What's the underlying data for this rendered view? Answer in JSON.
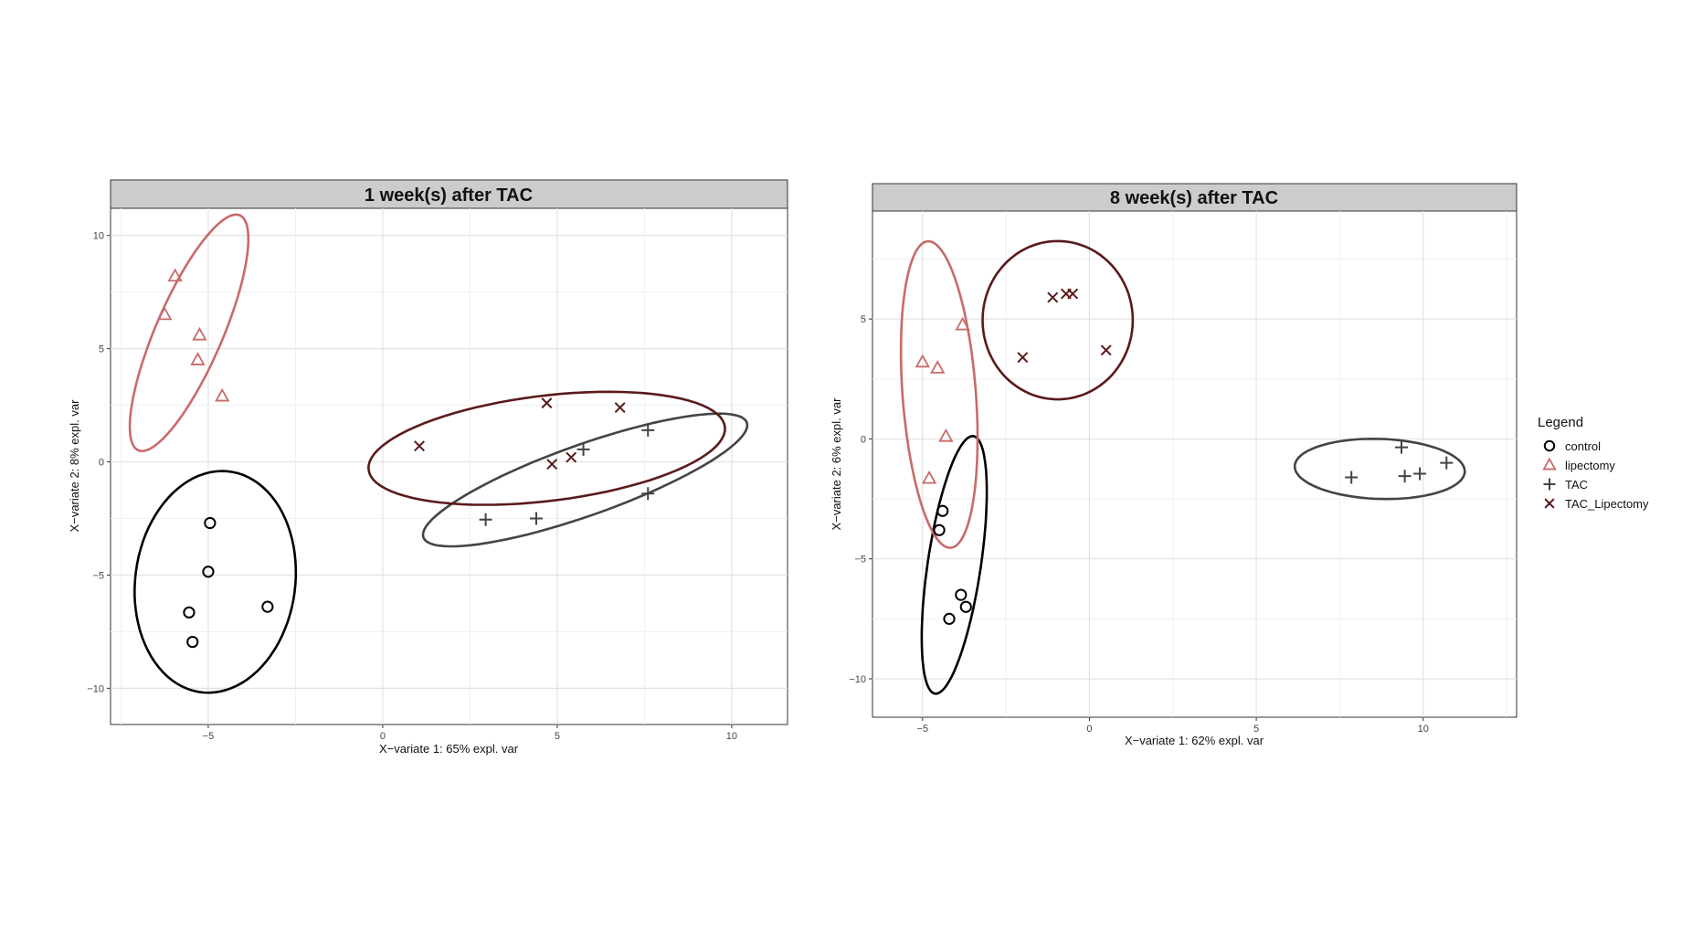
{
  "chart_data": [
    {
      "type": "scatter",
      "title": "1 week(s) after TAC",
      "xlabel": "X−variate 1: 65% expl. var",
      "ylabel": "X−variate 2: 8% expl. var",
      "xlim": [
        -7.8,
        11.6
      ],
      "ylim": [
        -11.6,
        11.2
      ],
      "xticks": [
        -5,
        0,
        5,
        10
      ],
      "xtick_labels": [
        "−5",
        "0",
        "5",
        "10"
      ],
      "yticks": [
        10,
        5,
        0,
        -5,
        -10
      ],
      "ytick_labels": [
        "10",
        "5",
        "0",
        "−5",
        "−10"
      ],
      "grid": true,
      "series": [
        {
          "name": "control",
          "marker": "circle",
          "color": "#000000",
          "x": [
            -4.95,
            -5.0,
            -5.55,
            -5.45,
            -3.3
          ],
          "y": [
            -2.7,
            -4.85,
            -6.65,
            -7.95,
            -6.4
          ],
          "ellipse": {
            "cx": -4.8,
            "cy": -5.3,
            "rx": 2.3,
            "ry": 4.9,
            "angle": -3
          }
        },
        {
          "name": "lipectomy",
          "marker": "triangle",
          "color": "#c96a6a",
          "x": [
            -5.95,
            -6.25,
            -5.25,
            -5.3,
            -4.6
          ],
          "y": [
            8.2,
            6.5,
            5.6,
            4.5,
            2.9
          ],
          "ellipse": {
            "cx": -5.55,
            "cy": 5.7,
            "rx": 1.0,
            "ry": 5.4,
            "angle": -15
          }
        },
        {
          "name": "TAC",
          "marker": "plus",
          "color": "#444444",
          "x": [
            2.95,
            4.4,
            5.75,
            7.6,
            7.6
          ],
          "y": [
            -2.55,
            -2.5,
            0.55,
            1.4,
            -1.4
          ],
          "ellipse": {
            "cx": 5.8,
            "cy": -0.8,
            "rx": 5.3,
            "ry": 1.45,
            "angle": 30
          }
        },
        {
          "name": "TAC_Lipectomy",
          "marker": "x",
          "color": "#5a1a1a",
          "x": [
            1.05,
            4.7,
            6.8,
            4.85,
            5.4
          ],
          "y": [
            0.7,
            2.6,
            2.4,
            -0.1,
            0.2
          ],
          "ellipse": {
            "cx": 4.7,
            "cy": 0.6,
            "rx": 5.2,
            "ry": 2.3,
            "angle": 12
          }
        }
      ]
    },
    {
      "type": "scatter",
      "title": "8 week(s) after TAC",
      "xlabel": "X−variate 1: 62% expl. var",
      "ylabel": "X−variate 2: 6% expl. var",
      "xlim": [
        -6.5,
        12.8
      ],
      "ylim": [
        -11.6,
        9.5
      ],
      "xticks": [
        -5,
        0,
        5,
        10
      ],
      "xtick_labels": [
        "−5",
        "0",
        "5",
        "10"
      ],
      "yticks": [
        5,
        0,
        -5,
        -10
      ],
      "ytick_labels": [
        "5",
        "0",
        "−5",
        "−10"
      ],
      "grid": true,
      "series": [
        {
          "name": "control",
          "marker": "circle",
          "color": "#000000",
          "x": [
            -4.4,
            -4.5,
            -3.85,
            -3.7,
            -4.2
          ],
          "y": [
            -3.0,
            -3.8,
            -6.5,
            -7.0,
            -7.5
          ],
          "ellipse": {
            "cx": -4.05,
            "cy": -5.25,
            "rx": 0.8,
            "ry": 5.4,
            "angle": -6
          }
        },
        {
          "name": "lipectomy",
          "marker": "triangle",
          "color": "#c96a6a",
          "x": [
            -5.0,
            -4.55,
            -3.8,
            -4.3,
            -4.8
          ],
          "y": [
            3.2,
            2.95,
            4.75,
            0.1,
            -1.65
          ],
          "ellipse": {
            "cx": -4.5,
            "cy": 1.85,
            "rx": 1.1,
            "ry": 6.4,
            "angle": 3
          }
        },
        {
          "name": "TAC",
          "marker": "plus",
          "color": "#444444",
          "x": [
            7.85,
            9.35,
            9.45,
            9.9,
            10.7
          ],
          "y": [
            -1.6,
            -0.35,
            -1.55,
            -1.45,
            -1.0
          ],
          "ellipse": {
            "cx": 8.7,
            "cy": -1.25,
            "rx": 2.55,
            "ry": 1.25,
            "angle": -3
          }
        },
        {
          "name": "TAC_Lipectomy",
          "marker": "x",
          "color": "#5a1a1a",
          "x": [
            -2.0,
            -1.1,
            -0.7,
            -0.5,
            0.5
          ],
          "y": [
            3.4,
            5.9,
            6.05,
            6.05,
            3.7
          ],
          "ellipse": {
            "cx": -0.95,
            "cy": 4.95,
            "rx": 2.25,
            "ry": 3.3,
            "angle": 0
          }
        }
      ]
    }
  ],
  "legend": {
    "title": "Legend",
    "items": [
      {
        "label": "control",
        "marker": "circle",
        "color": "#000000"
      },
      {
        "label": "lipectomy",
        "marker": "triangle",
        "color": "#c96a6a"
      },
      {
        "label": "TAC",
        "marker": "plus",
        "color": "#444444"
      },
      {
        "label": "TAC_Lipectomy",
        "marker": "x",
        "color": "#5a1a1a"
      }
    ]
  }
}
